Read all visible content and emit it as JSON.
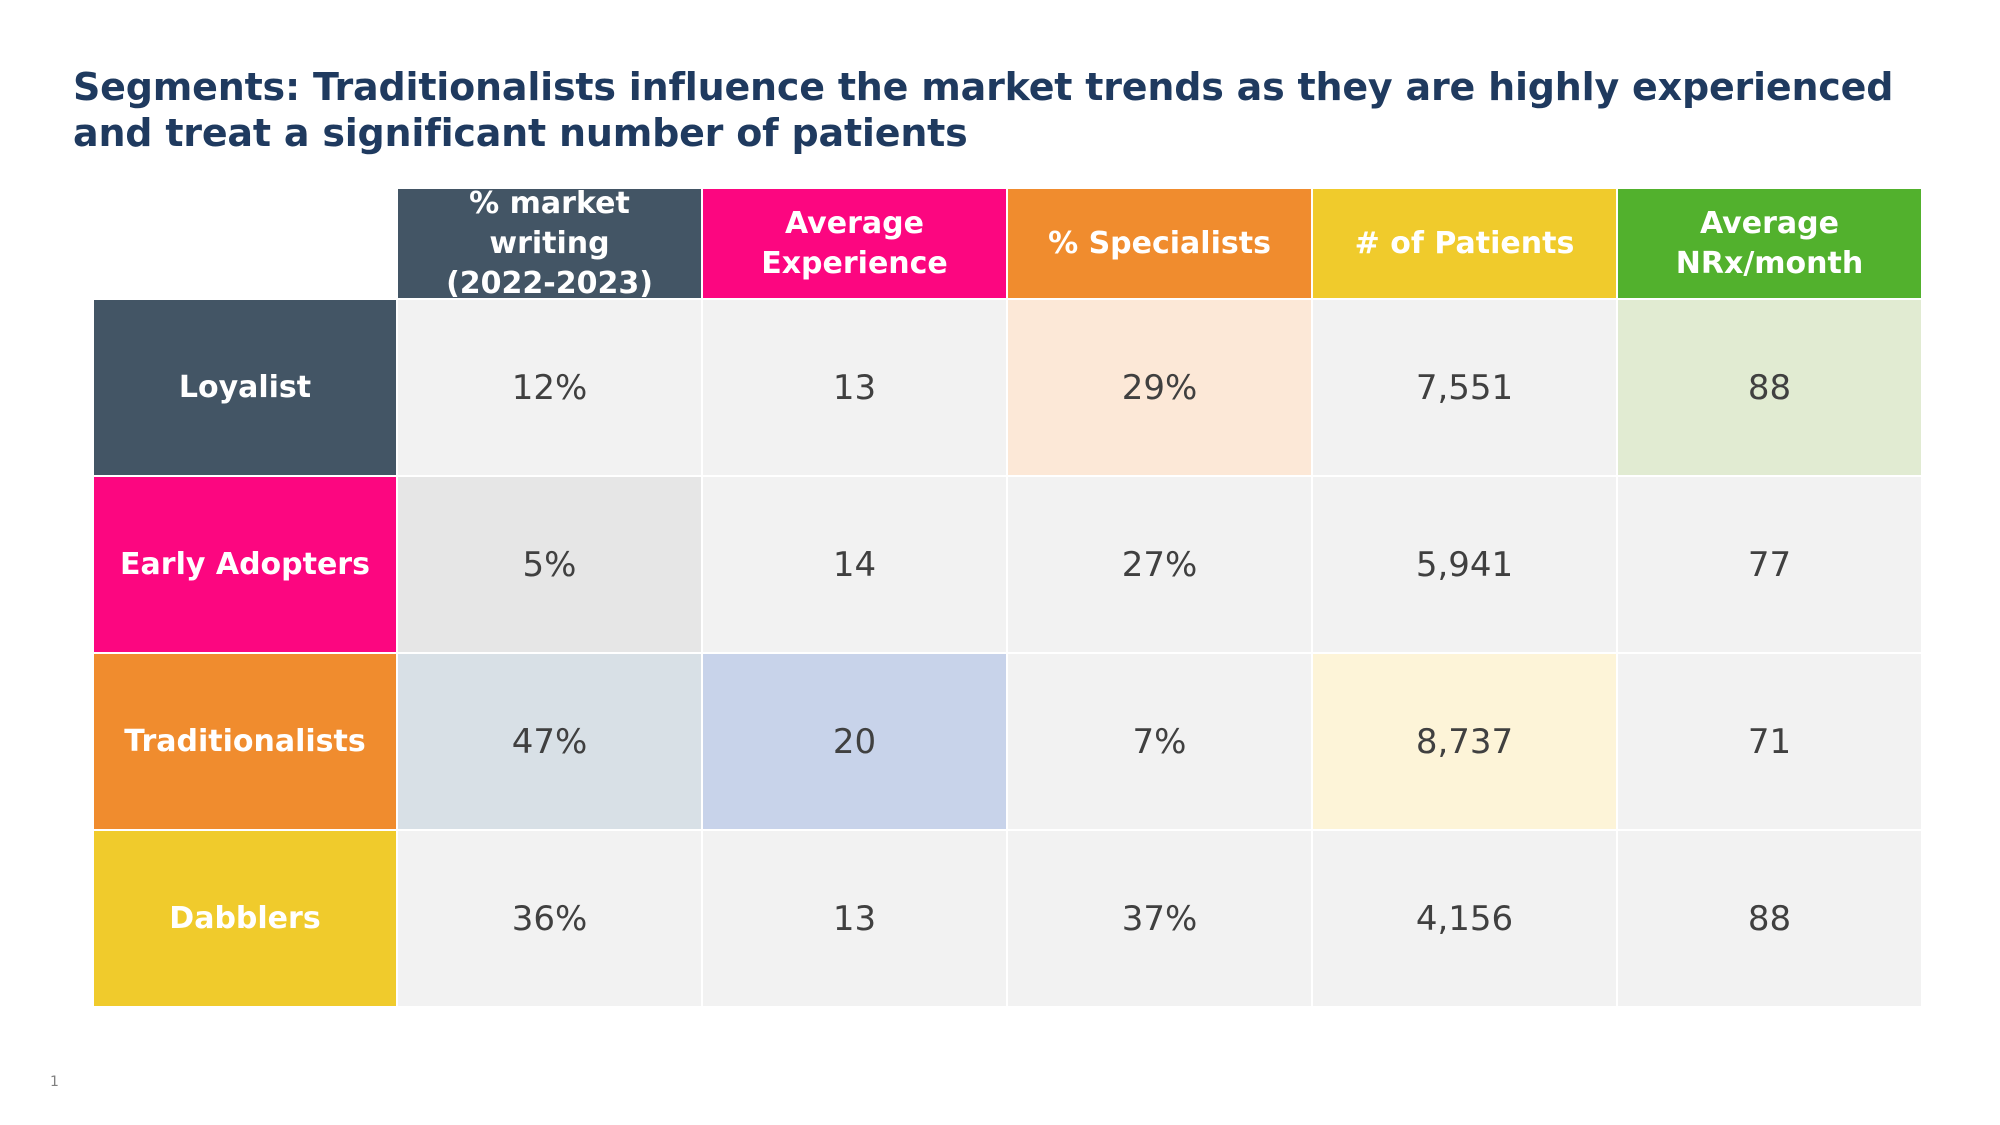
{
  "title": "Segments: Traditionalists influence the market trends as they are highly experienced and treat a significant number of patients",
  "page_number": "1",
  "colors": {
    "navy": "#435565",
    "magenta": "#fc0680",
    "orange": "#f08c2e",
    "yellow": "#f0cb2c",
    "green": "#52b12d",
    "cell_default": "#f2f2f2"
  },
  "columns": [
    {
      "label": "% market writing\n(2022-2023)",
      "color": "#435565"
    },
    {
      "label": "Average\nExperience",
      "color": "#fc0680"
    },
    {
      "label": "% Specialists",
      "color": "#f08c2e"
    },
    {
      "label": "# of Patients",
      "color": "#f0cb2c"
    },
    {
      "label": "Average\nNRx/month",
      "color": "#52b12d"
    }
  ],
  "rows": [
    {
      "label": "Loyalist",
      "color": "#435565",
      "values": [
        "12%",
        "13",
        "29%",
        "7,551",
        "88"
      ],
      "highlights": [
        "",
        "",
        "#fce8d7",
        "",
        "#e1ebd2"
      ]
    },
    {
      "label": "Early Adopters",
      "color": "#fc0680",
      "values": [
        "5%",
        "14",
        "27%",
        "5,941",
        "77"
      ],
      "highlights": [
        "#e6e6e6",
        "",
        "",
        "",
        ""
      ]
    },
    {
      "label": "Traditionalists",
      "color": "#f08c2e",
      "values": [
        "47%",
        "20",
        "7%",
        "8,737",
        "71"
      ],
      "highlights": [
        "#d8e0e6",
        "#c8d3ea",
        "",
        "#fdf4d8",
        ""
      ]
    },
    {
      "label": "Dabblers",
      "color": "#f0cb2c",
      "values": [
        "36%",
        "13",
        "37%",
        "4,156",
        "88"
      ],
      "highlights": [
        "",
        "",
        "",
        "",
        ""
      ]
    }
  ]
}
